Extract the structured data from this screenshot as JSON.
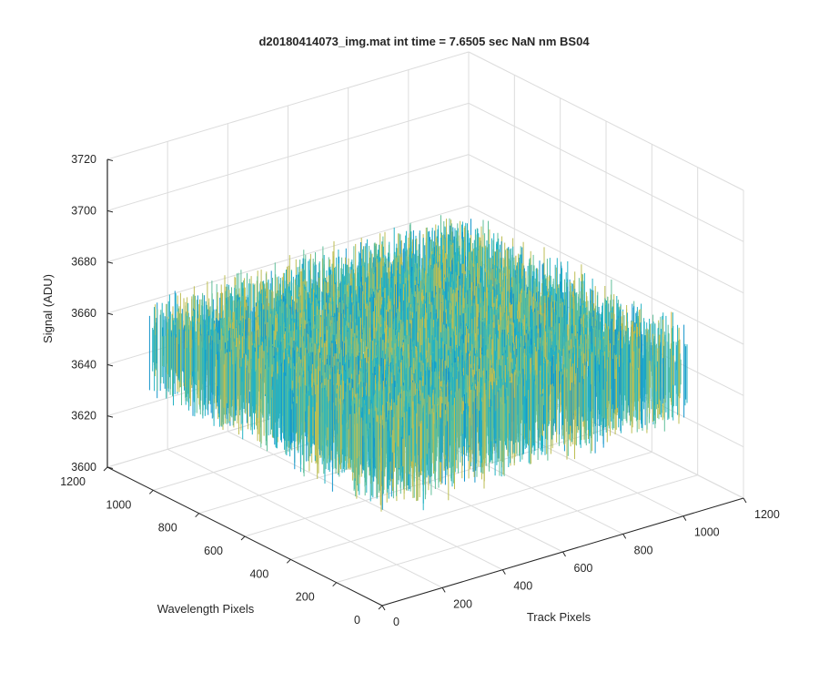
{
  "chart_data": {
    "type": "surface",
    "title": "d20180414073_img.mat int time = 7.6505 sec  NaN nm BS04",
    "xlabel": "Track Pixels",
    "ylabel": "Wavelength Pixels",
    "zlabel": "Signal (ADU)",
    "xlim": [
      0,
      1200
    ],
    "ylim": [
      0,
      1200
    ],
    "zlim": [
      3600,
      3720
    ],
    "xticks": [
      "0",
      "200",
      "400",
      "600",
      "800",
      "1000",
      "1200"
    ],
    "yticks": [
      "0",
      "200",
      "400",
      "600",
      "800",
      "1000",
      "1200"
    ],
    "zticks": [
      "3600",
      "3620",
      "3640",
      "3660",
      "3680",
      "3700",
      "3720"
    ],
    "grid": true,
    "data_extent": {
      "x": [
        0,
        1024
      ],
      "y": [
        0,
        1024
      ]
    },
    "z_mean": 3655,
    "z_range": [
      3620,
      3705
    ],
    "colormap": [
      "#0c6fb8",
      "#1496cc",
      "#23b2c4",
      "#5fbf99",
      "#bdbe53",
      "#e2b63a"
    ]
  }
}
